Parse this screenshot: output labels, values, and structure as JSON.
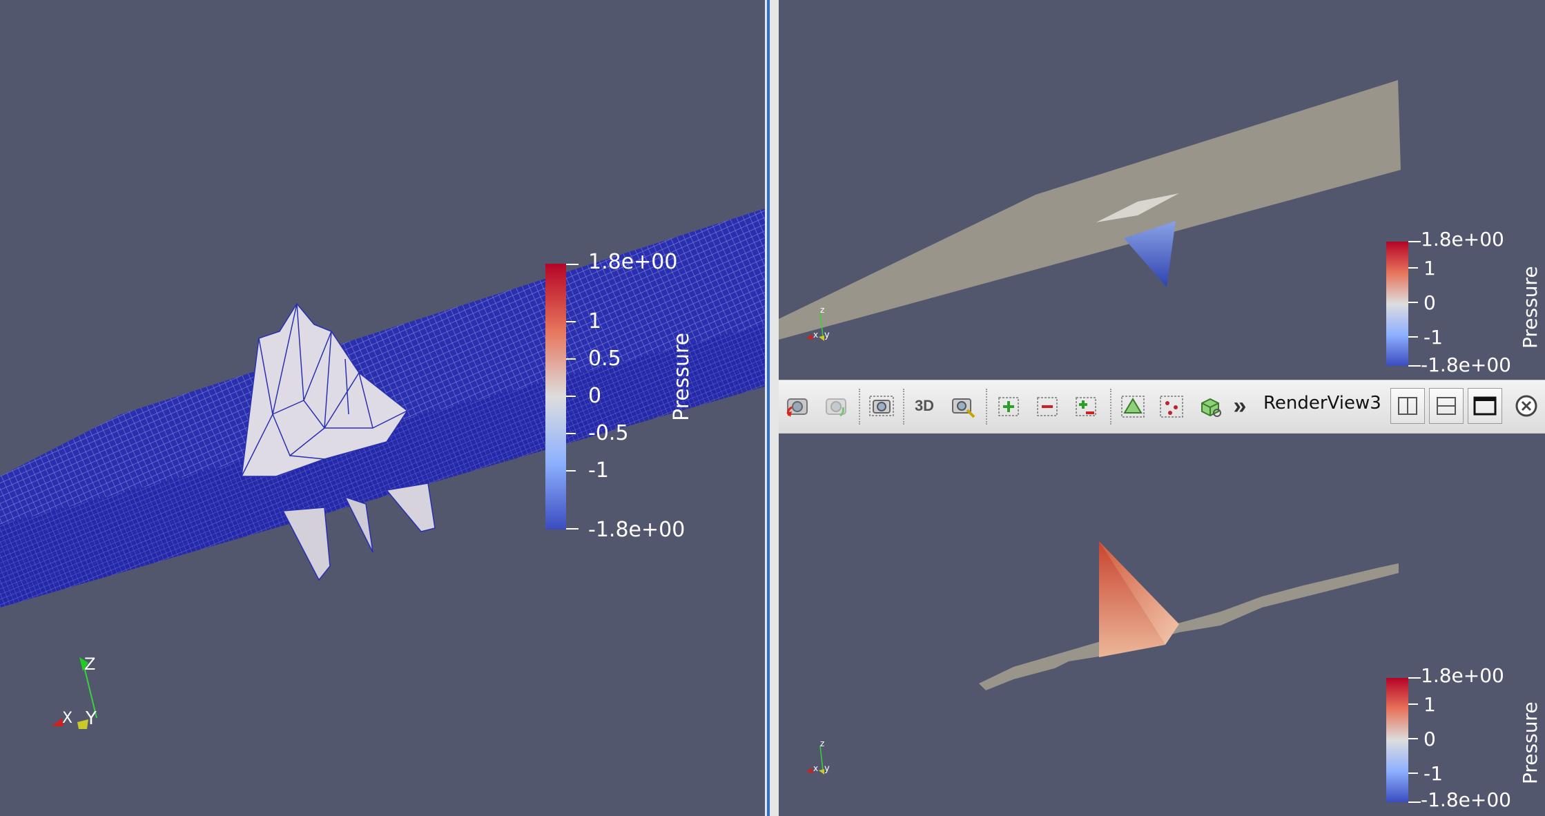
{
  "views": {
    "left": {
      "colorbar": {
        "title": "Pressure",
        "max_label": "1.8e+00",
        "min_label": "-1.8e+00",
        "ticks": [
          "1",
          "0.5",
          "0",
          "-0.5",
          "-1"
        ]
      },
      "axes": {
        "x": "X",
        "y": "Y",
        "z": "Z"
      }
    },
    "top_right": {
      "colorbar": {
        "title": "Pressure",
        "max_label": "1.8e+00",
        "min_label": "-1.8e+00",
        "ticks": [
          "1",
          "0",
          "-1"
        ]
      },
      "axes": {
        "x": "x",
        "y": "y",
        "z": "z"
      }
    },
    "bottom_right": {
      "title": "RenderView3",
      "colorbar": {
        "title": "Pressure",
        "max_label": "1.8e+00",
        "min_label": "-1.8e+00",
        "ticks": [
          "1",
          "0",
          "-1"
        ]
      },
      "axes": {
        "x": "x",
        "y": "y",
        "z": "z"
      }
    }
  },
  "toolbar": {
    "toggle_3d_label": "3D",
    "more_label": "»",
    "icons": [
      "reset-camera-icon",
      "reset-camera-closest-icon",
      "capture-screenshot-icon",
      "toggle-3d-icon",
      "zoom-to-data-icon",
      "zoom-in-icon",
      "zoom-out-icon",
      "zoom-closest-icon",
      "select-cells-icon",
      "select-points-icon",
      "select-block-icon",
      "more-icon",
      "split-horizontal-icon",
      "split-vertical-icon",
      "maximize-icon",
      "close-icon"
    ]
  },
  "colors": {
    "background": "#52576e",
    "colormap_max": "#b40426",
    "colormap_mid": "#dddddd",
    "colormap_min": "#3b4cc0",
    "mesh_wire": "#1c20c8",
    "surface": "#9a958a"
  }
}
